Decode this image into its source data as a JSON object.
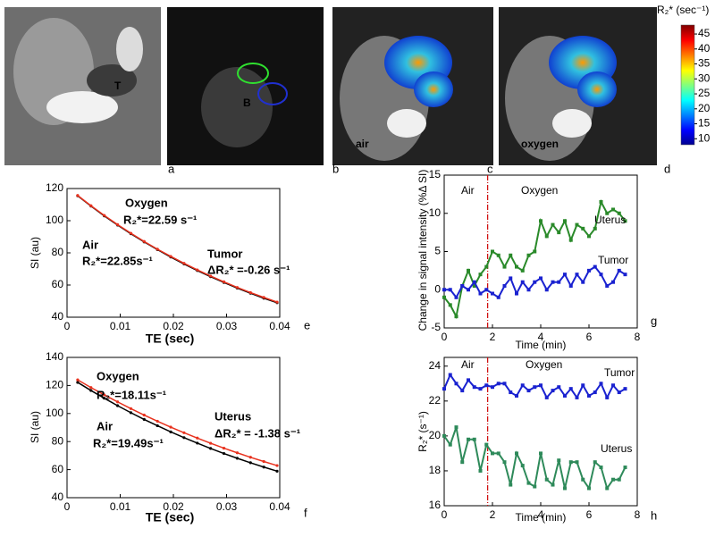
{
  "images": {
    "panels": [
      {
        "letter": "a",
        "labels": [
          "T"
        ]
      },
      {
        "letter": "b",
        "labels": [
          "B"
        ]
      },
      {
        "letter": "c",
        "labels": [
          "air"
        ]
      },
      {
        "letter": "d",
        "labels": [
          "oxygen"
        ]
      }
    ],
    "colorbar": {
      "title": "R₂* (sec⁻¹)",
      "lim": [
        8,
        48
      ],
      "ticks": [
        10,
        15,
        20,
        25,
        30,
        35,
        40,
        45
      ]
    }
  },
  "chart_data": [
    {
      "type": "line",
      "panel": "e",
      "xlabel": "TE (sec)",
      "ylabel": "SI (au)",
      "x": [
        0.002,
        0.0045,
        0.007,
        0.0095,
        0.012,
        0.0145,
        0.017,
        0.0195,
        0.022,
        0.0245,
        0.027,
        0.0295,
        0.032,
        0.0345,
        0.037,
        0.0395
      ],
      "series": [
        {
          "name": "Air",
          "color": "#000000",
          "values": [
            115.5,
            109.1,
            103.0,
            97.3,
            91.9,
            86.8,
            82.0,
            77.4,
            73.1,
            69.0,
            65.2,
            61.6,
            58.1,
            54.9,
            51.8,
            49.0
          ]
        },
        {
          "name": "Oxygen",
          "color": "#e8321e",
          "values": [
            115.7,
            109.3,
            103.3,
            97.6,
            92.2,
            87.1,
            82.3,
            77.8,
            73.5,
            69.4,
            65.6,
            62.0,
            58.5,
            55.3,
            52.3,
            49.4
          ]
        }
      ],
      "annotations": [
        "R₂*=22.59 s⁻¹",
        "R₂*=22.85s⁻¹",
        "Tumor",
        "ΔR₂* =-0.26 s⁻¹"
      ],
      "xlim": [
        0,
        0.04
      ],
      "xticks": [
        0,
        0.01,
        0.02,
        0.03,
        0.04
      ],
      "ylim": [
        40,
        120
      ],
      "yticks": [
        40,
        60,
        80,
        100,
        120
      ]
    },
    {
      "type": "line",
      "panel": "f",
      "xlabel": "TE (sec)",
      "ylabel": "SI (au)",
      "x": [
        0.002,
        0.0045,
        0.007,
        0.0095,
        0.012,
        0.0145,
        0.017,
        0.0195,
        0.022,
        0.0245,
        0.027,
        0.0295,
        0.032,
        0.0345,
        0.037,
        0.0395
      ],
      "series": [
        {
          "name": "Air",
          "color": "#000000",
          "values": [
            122.2,
            116.4,
            110.9,
            105.6,
            100.6,
            95.8,
            91.3,
            86.9,
            82.8,
            78.9,
            75.1,
            71.5,
            68.1,
            64.9,
            61.8,
            58.9
          ]
        },
        {
          "name": "Oxygen",
          "color": "#e8321e",
          "values": [
            124.0,
            118.5,
            113.3,
            108.3,
            103.5,
            98.9,
            94.5,
            90.3,
            86.3,
            82.5,
            78.8,
            75.3,
            72.0,
            68.8,
            65.8,
            62.9
          ]
        }
      ],
      "annotations": [
        "R₂*=18.11s⁻¹",
        "R₂*=19.49s⁻¹",
        "Uterus",
        "ΔR₂* = -1.38 s⁻¹"
      ],
      "xlim": [
        0,
        0.04
      ],
      "xticks": [
        0,
        0.01,
        0.02,
        0.03,
        0.04
      ],
      "ylim": [
        40,
        140
      ],
      "yticks": [
        40,
        60,
        80,
        100,
        120,
        140
      ]
    },
    {
      "type": "line",
      "panel": "g",
      "xlabel": "Time (min)",
      "ylabel": "Change in signal intensity (%Δ SI)",
      "x": [
        0,
        0.25,
        0.5,
        0.75,
        1,
        1.25,
        1.5,
        1.75,
        2,
        2.25,
        2.5,
        2.75,
        3,
        3.25,
        3.5,
        3.75,
        4,
        4.25,
        4.5,
        4.75,
        5,
        5.25,
        5.5,
        5.75,
        6,
        6.25,
        6.5,
        6.75,
        7,
        7.25,
        7.5
      ],
      "series": [
        {
          "name": "Uterus",
          "color": "#2a8a2a",
          "values": [
            -1,
            -2,
            -3.5,
            0.5,
            2.5,
            0.5,
            2,
            3,
            5,
            4.5,
            3,
            4.5,
            3,
            2.5,
            4.5,
            5,
            9,
            7,
            8.5,
            7.5,
            9,
            6.5,
            8.5,
            8,
            7,
            8,
            11.5,
            10,
            10.5,
            10,
            9
          ]
        },
        {
          "name": "Tumor",
          "color": "#1a22d0",
          "values": [
            0,
            0,
            -1,
            0.5,
            0,
            1,
            -0.5,
            0,
            -0.5,
            -1,
            0.5,
            1.5,
            -0.5,
            1,
            0,
            1,
            1.5,
            0,
            1,
            1,
            2,
            0.5,
            2,
            1,
            2.5,
            3,
            2,
            0.5,
            1,
            2.5,
            2
          ]
        }
      ],
      "annotations": [
        "Air",
        "Oxygen"
      ],
      "vline": 1.8,
      "xlim": [
        0,
        8
      ],
      "xticks": [
        0,
        2,
        4,
        6,
        8
      ],
      "ylim": [
        -5,
        15
      ],
      "yticks": [
        -5,
        0,
        5,
        10,
        15
      ]
    },
    {
      "type": "line",
      "panel": "h",
      "xlabel": "Time (min)",
      "ylabel": "R₂* (s⁻¹)",
      "x": [
        0,
        0.25,
        0.5,
        0.75,
        1,
        1.25,
        1.5,
        1.75,
        2,
        2.25,
        2.5,
        2.75,
        3,
        3.25,
        3.5,
        3.75,
        4,
        4.25,
        4.5,
        4.75,
        5,
        5.25,
        5.5,
        5.75,
        6,
        6.25,
        6.5,
        6.75,
        7,
        7.25,
        7.5
      ],
      "series": [
        {
          "name": "Tumor",
          "color": "#1a22d0",
          "values": [
            22.7,
            23.5,
            23.0,
            22.6,
            23.2,
            22.8,
            22.7,
            22.9,
            22.8,
            23.0,
            23.0,
            22.5,
            22.3,
            22.9,
            22.6,
            22.8,
            22.9,
            22.2,
            22.6,
            22.8,
            22.3,
            22.7,
            22.2,
            22.9,
            22.3,
            22.5,
            23.0,
            22.2,
            22.9,
            22.5,
            22.7
          ]
        },
        {
          "name": "Uterus",
          "color": "#2e8a5a",
          "values": [
            20.0,
            19.5,
            20.5,
            18.5,
            19.8,
            19.8,
            18.0,
            19.5,
            19.0,
            19.0,
            18.5,
            17.2,
            19.0,
            18.3,
            17.3,
            17.1,
            19.0,
            17.5,
            17.2,
            18.6,
            17.0,
            18.5,
            18.5,
            17.5,
            17.0,
            18.5,
            18.2,
            17.0,
            17.5,
            17.5,
            18.2
          ]
        }
      ],
      "annotations": [
        "Air",
        "Oxygen"
      ],
      "vline": 1.8,
      "xlim": [
        0,
        8
      ],
      "xticks": [
        0,
        2,
        4,
        6,
        8
      ],
      "ylim": [
        16,
        24.5
      ],
      "yticks": [
        16,
        18,
        20,
        22,
        24
      ]
    }
  ]
}
